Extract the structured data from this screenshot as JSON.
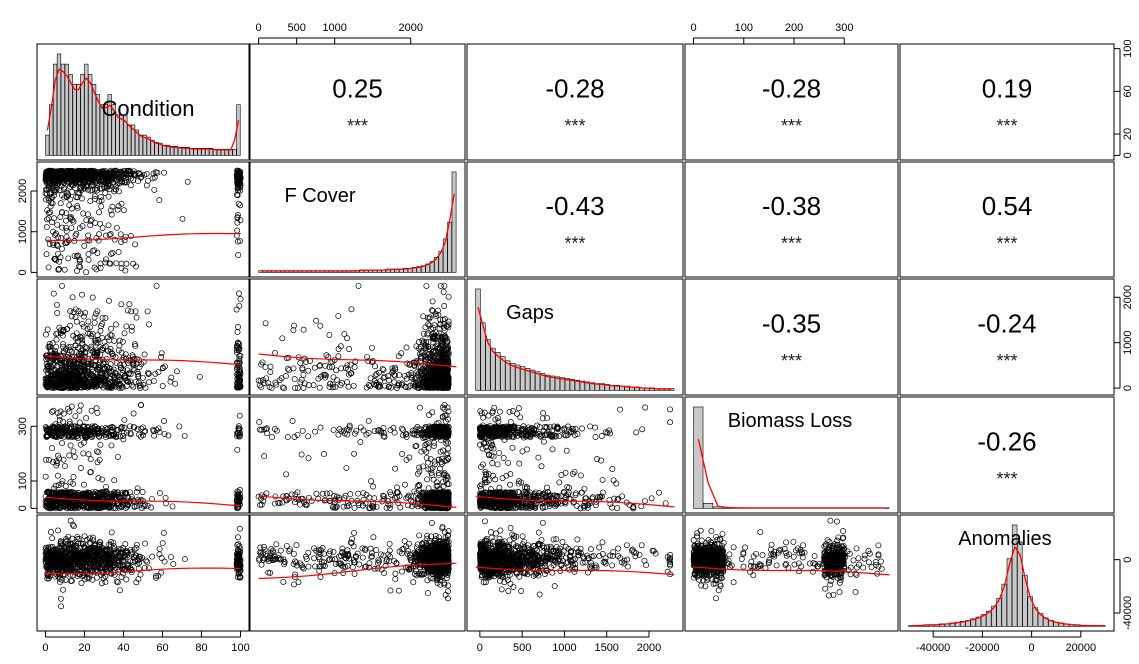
{
  "chart_data": {
    "type": "scatter",
    "title": "",
    "variables": [
      "Condition",
      "F Cover",
      "Gaps",
      "Biomass Loss",
      "Anomalies"
    ],
    "correlations": [
      {
        "row": 0,
        "col": 1,
        "r": "0.25",
        "sig": "***"
      },
      {
        "row": 0,
        "col": 2,
        "r": "-0.28",
        "sig": "***"
      },
      {
        "row": 0,
        "col": 3,
        "r": "-0.28",
        "sig": "***"
      },
      {
        "row": 0,
        "col": 4,
        "r": "0.19",
        "sig": "***"
      },
      {
        "row": 1,
        "col": 2,
        "r": "-0.43",
        "sig": "***"
      },
      {
        "row": 1,
        "col": 3,
        "r": "-0.38",
        "sig": "***"
      },
      {
        "row": 1,
        "col": 4,
        "r": "0.54",
        "sig": "***"
      },
      {
        "row": 2,
        "col": 3,
        "r": "-0.35",
        "sig": "***"
      },
      {
        "row": 2,
        "col": 4,
        "r": "-0.24",
        "sig": "***"
      },
      {
        "row": 3,
        "col": 4,
        "r": "-0.26",
        "sig": "***"
      }
    ],
    "ranges": [
      [
        0,
        100
      ],
      [
        0,
        2600
      ],
      [
        -50,
        2300
      ],
      [
        0,
        390
      ],
      [
        -50000,
        30000
      ]
    ],
    "axes": {
      "top": [
        {
          "var": 1,
          "ticks": [
            "0",
            "500",
            "1000",
            "2000"
          ],
          "values": [
            0,
            500,
            1000,
            2000
          ]
        },
        {
          "var": 3,
          "ticks": [
            "0",
            "100",
            "200",
            "300"
          ],
          "values": [
            0,
            100,
            200,
            300
          ]
        }
      ],
      "bottom": [
        {
          "var": 0,
          "ticks": [
            "0",
            "20",
            "40",
            "60",
            "80",
            "100"
          ],
          "values": [
            0,
            20,
            40,
            60,
            80,
            100
          ]
        },
        {
          "var": 2,
          "ticks": [
            "0",
            "500",
            "1000",
            "1500",
            "2000"
          ],
          "values": [
            0,
            500,
            1000,
            1500,
            2000
          ]
        },
        {
          "var": 4,
          "ticks": [
            "-40000",
            "-20000",
            "0",
            "20000"
          ],
          "values": [
            -40000,
            -20000,
            0,
            20000
          ]
        }
      ],
      "left": [
        {
          "var": 1,
          "ticks": [
            "0",
            "1000",
            "2000"
          ],
          "values": [
            0,
            1000,
            2000
          ]
        },
        {
          "var": 3,
          "ticks": [
            "0",
            "100",
            "300"
          ],
          "values": [
            0,
            100,
            300
          ]
        }
      ],
      "right": [
        {
          "var": 0,
          "ticks": [
            "0",
            "20",
            "60",
            "100"
          ],
          "values": [
            0,
            20,
            60,
            100
          ]
        },
        {
          "var": 2,
          "ticks": [
            "0",
            "1000",
            "2000"
          ],
          "values": [
            0,
            1000,
            2000
          ]
        },
        {
          "var": 4,
          "ticks": [
            "-40000",
            "0"
          ],
          "values": [
            -40000,
            0
          ]
        }
      ]
    },
    "histograms": [
      {
        "var": 0,
        "counts": [
          2,
          5,
          9,
          10,
          9,
          9,
          8,
          7,
          7,
          8,
          9,
          8,
          7,
          6,
          5,
          5,
          6,
          5,
          4,
          4,
          4,
          3,
          3,
          2.5,
          2,
          2,
          1.8,
          1.5,
          1.3,
          1.2,
          1,
          1,
          0.9,
          0.9,
          0.8,
          0.8,
          0.8,
          0.7,
          0.7,
          0.7,
          0.7,
          0.7,
          0.7,
          0.6,
          0.6,
          0.6,
          0.6,
          0.6,
          0.6,
          5
        ]
      },
      {
        "var": 1,
        "counts": [
          0.2,
          0.2,
          0.2,
          0.2,
          0.2,
          0.2,
          0.2,
          0.2,
          0.2,
          0.2,
          0.2,
          0.2,
          0.2,
          0.2,
          0.2,
          0.2,
          0.2,
          0.2,
          0.2,
          0.2,
          0.2,
          0.2,
          0.2,
          0.3,
          0.3,
          0.3,
          0.3,
          0.3,
          0.3,
          0.4,
          0.4,
          0.4,
          0.4,
          0.5,
          0.5,
          0.6,
          0.7,
          0.8,
          1,
          1.3,
          1.8,
          2.5,
          4,
          6,
          12
        ]
      },
      {
        "var": 2,
        "counts": [
          12,
          8,
          6,
          5,
          4.5,
          4,
          3.5,
          3.2,
          3,
          2.8,
          2.6,
          2.4,
          2.2,
          2,
          1.8,
          1.7,
          1.6,
          1.5,
          1.4,
          1.3,
          1.2,
          1.1,
          1,
          0.9,
          0.8,
          0.8,
          0.7,
          0.6,
          0.6,
          0.5,
          0.5,
          0.4,
          0.4,
          0.3,
          0.3,
          0.3,
          0.2,
          0.2,
          0.2,
          0.2
        ]
      },
      {
        "var": 3,
        "counts": [
          20,
          1,
          0.3,
          0.2,
          0.1,
          0.1,
          0.1,
          0.1,
          0.1,
          0.1,
          0.1,
          0.1,
          0.1,
          0.1,
          0.1,
          0.1,
          0.1,
          0.1,
          0.1,
          0.1
        ]
      },
      {
        "var": 4,
        "counts": [
          0.1,
          0.1,
          0.1,
          0.2,
          0.2,
          0.2,
          0.3,
          0.3,
          0.4,
          0.5,
          0.6,
          0.7,
          0.9,
          1.1,
          1.4,
          1.8,
          2.4,
          3.3,
          5,
          8,
          12,
          10,
          6,
          3.5,
          2.2,
          1.5,
          1,
          0.7,
          0.5,
          0.4,
          0.3,
          0.2,
          0.2,
          0.1,
          0.1,
          0.1,
          0.1,
          0.1
        ]
      }
    ],
    "density_color": "#ff0000",
    "point_color": "#000000",
    "bar_fill": "#c8c8c8"
  }
}
